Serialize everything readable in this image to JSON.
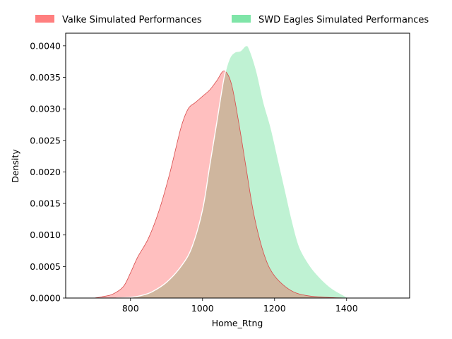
{
  "chart_data": {
    "type": "area",
    "title": "",
    "xlabel": "Home_Rtng",
    "ylabel": "Density",
    "xlim": [
      620,
      1575
    ],
    "ylim": [
      0,
      0.0042
    ],
    "x_ticks": [
      800,
      1000,
      1200,
      1400
    ],
    "x_tick_labels": [
      "800",
      "1000",
      "1200",
      "1400"
    ],
    "y_ticks": [
      0,
      0.0005,
      0.001,
      0.0015,
      0.002,
      0.0025,
      0.003,
      0.0035,
      0.004
    ],
    "y_tick_labels": [
      "0.0000",
      "0.0005",
      "0.0010",
      "0.0015",
      "0.0020",
      "0.0025",
      "0.0030",
      "0.0035",
      "0.0040"
    ],
    "grid": false,
    "legend_position": "top-center, above plot",
    "series": [
      {
        "name": "Valke Simulated Performances",
        "color": "#ff7f7f",
        "points": [
          [
            700,
            0
          ],
          [
            720,
            2e-05
          ],
          [
            750,
            6e-05
          ],
          [
            780,
            0.00018
          ],
          [
            800,
            0.0004
          ],
          [
            820,
            0.00065
          ],
          [
            850,
            0.00095
          ],
          [
            880,
            0.0014
          ],
          [
            910,
            0.002
          ],
          [
            940,
            0.0027
          ],
          [
            960,
            0.003
          ],
          [
            980,
            0.0031
          ],
          [
            1000,
            0.0032
          ],
          [
            1020,
            0.0033
          ],
          [
            1040,
            0.00345
          ],
          [
            1060,
            0.0036
          ],
          [
            1080,
            0.0034
          ],
          [
            1100,
            0.0028
          ],
          [
            1120,
            0.0021
          ],
          [
            1140,
            0.0014
          ],
          [
            1160,
            0.0009
          ],
          [
            1180,
            0.00055
          ],
          [
            1200,
            0.00035
          ],
          [
            1230,
            0.00018
          ],
          [
            1260,
            8e-05
          ],
          [
            1300,
            3e-05
          ],
          [
            1350,
            1e-05
          ],
          [
            1400,
            0
          ]
        ]
      },
      {
        "name": "SWD Eagles Simulated Performances",
        "color": "#7fe5a8",
        "points": [
          [
            760,
            0
          ],
          [
            800,
            1e-05
          ],
          [
            830,
            4e-05
          ],
          [
            860,
            0.0001
          ],
          [
            900,
            0.00025
          ],
          [
            940,
            0.0005
          ],
          [
            970,
            0.0008
          ],
          [
            1000,
            0.0014
          ],
          [
            1020,
            0.0021
          ],
          [
            1040,
            0.0028
          ],
          [
            1060,
            0.0035
          ],
          [
            1075,
            0.0038
          ],
          [
            1090,
            0.0039
          ],
          [
            1105,
            0.00392
          ],
          [
            1120,
            0.004
          ],
          [
            1130,
            0.00395
          ],
          [
            1150,
            0.0036
          ],
          [
            1170,
            0.0031
          ],
          [
            1190,
            0.0027
          ],
          [
            1210,
            0.0022
          ],
          [
            1230,
            0.0017
          ],
          [
            1250,
            0.0012
          ],
          [
            1270,
            0.0008
          ],
          [
            1300,
            0.0005
          ],
          [
            1330,
            0.0003
          ],
          [
            1360,
            0.00015
          ],
          [
            1390,
            5e-05
          ],
          [
            1410,
            0
          ],
          [
            1450,
            0
          ],
          [
            1480,
            0
          ]
        ]
      }
    ],
    "overlap_color": "#cfb69e"
  }
}
